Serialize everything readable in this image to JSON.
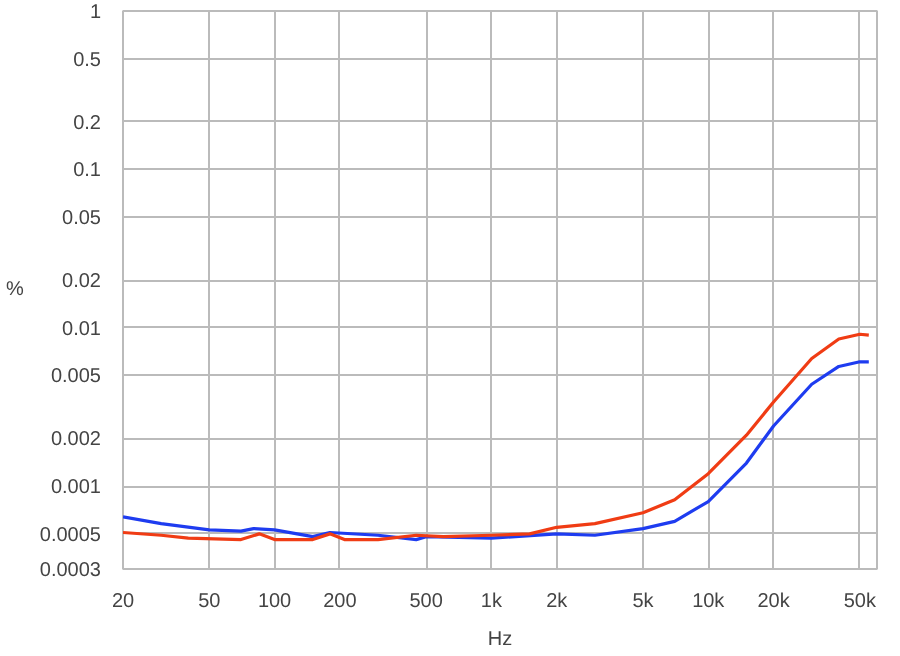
{
  "chart_data": {
    "type": "line",
    "xlabel": "Hz",
    "ylabel": "%",
    "log": "xy",
    "grid": true,
    "xlim": [
      20,
      60000
    ],
    "ylim": [
      0.0003,
      1
    ],
    "xticks": [
      20,
      50,
      100,
      200,
      500,
      {
        "value": 1000,
        "label": "1k"
      },
      {
        "value": 2000,
        "label": "2k"
      },
      {
        "value": 5000,
        "label": "5k"
      },
      {
        "value": 10000,
        "label": "10k"
      },
      {
        "value": 20000,
        "label": "20k"
      },
      {
        "value": 50000,
        "label": "50k"
      }
    ],
    "yticks": [
      0.0003,
      0.0005,
      0.001,
      0.002,
      0.005,
      0.01,
      0.02,
      0.05,
      0.1,
      0.2,
      0.5,
      1
    ],
    "series": [
      {
        "color": "#1e3cf0",
        "x": [
          20,
          30,
          50,
          70,
          80,
          100,
          150,
          180,
          300,
          450,
          500,
          1000,
          2000,
          3000,
          5000,
          7000,
          10000,
          15000,
          20000,
          30000,
          40000,
          50000,
          55000
        ],
        "values": [
          0.00064,
          0.00058,
          0.00053,
          0.00052,
          0.00054,
          0.00053,
          0.00048,
          0.00051,
          0.00049,
          0.00046,
          0.00048,
          0.00047,
          0.0005,
          0.00049,
          0.00054,
          0.0006,
          0.0008,
          0.0014,
          0.0024,
          0.0044,
          0.0057,
          0.0061,
          0.0061
        ]
      },
      {
        "color": "#f03c14",
        "x": [
          20,
          30,
          40,
          70,
          85,
          100,
          150,
          180,
          210,
          300,
          450,
          600,
          1000,
          1500,
          2000,
          3000,
          5000,
          7000,
          10000,
          15000,
          20000,
          30000,
          40000,
          50000,
          55000
        ],
        "values": [
          0.00051,
          0.00049,
          0.00047,
          0.00046,
          0.0005,
          0.00046,
          0.00046,
          0.0005,
          0.00046,
          0.00046,
          0.00049,
          0.00048,
          0.00049,
          0.0005,
          0.00055,
          0.00058,
          0.00068,
          0.00082,
          0.0012,
          0.0021,
          0.0034,
          0.0064,
          0.0085,
          0.0091,
          0.009
        ]
      }
    ]
  }
}
